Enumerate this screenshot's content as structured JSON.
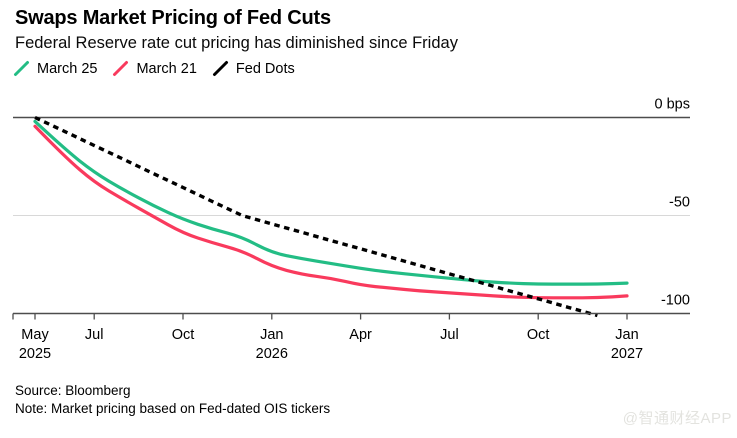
{
  "header": {
    "title": "Swaps Market Pricing of Fed Cuts",
    "subtitle": "Federal Reserve rate cut pricing has diminished since Friday"
  },
  "footer": {
    "source": "Source: Bloomberg",
    "note": "Note: Market pricing based on Fed-dated OIS tickers"
  },
  "watermark": "@智通财经APP",
  "chart_data": {
    "type": "line",
    "y_unit": "bps",
    "x_range": [
      "May 2025",
      "Jan 2027"
    ],
    "ylim": [
      -105,
      0
    ],
    "grid": "horizontal",
    "legend_position": "top-left",
    "colors": {
      "march25": "#23bd85",
      "march21": "#f93a5d",
      "fed_dots": "#000000",
      "axis": "#4d4d4d",
      "minor_grid": "#d8d8d8"
    },
    "series": [
      {
        "name": "March 25",
        "color": "#23bd85",
        "style": "solid",
        "start_month": 0,
        "values": [
          -2,
          -16,
          -28,
          -37,
          -45,
          -52,
          -57,
          -61,
          -69,
          -72,
          -74.5,
          -77,
          -79,
          -80.5,
          -82,
          -83.5,
          -84.5,
          -85,
          -85,
          -85,
          -84.5
        ]
      },
      {
        "name": "March 21",
        "color": "#f93a5d",
        "style": "solid",
        "start_month": 0,
        "values": [
          -4.5,
          -20,
          -33,
          -42,
          -50.5,
          -59,
          -64,
          -68,
          -76,
          -80,
          -82,
          -85.5,
          -87,
          -88.5,
          -89.5,
          -90.5,
          -91.5,
          -92,
          -92,
          -92,
          -91
        ]
      },
      {
        "name": "Fed Dots",
        "color": "#000000",
        "style": "dashed",
        "start_month": 0,
        "values": [
          0,
          -7.1,
          -14.3,
          -21.4,
          -28.6,
          -35.7,
          -42.9,
          -50,
          -54.3,
          -58.5,
          -62.8,
          -67,
          -71.3,
          -75.5,
          -79.8,
          -84,
          -88.3,
          -92.5,
          -96.8,
          -101
        ]
      }
    ],
    "x_ticks": [
      {
        "label": "May",
        "sublabel": "2025",
        "month": 0
      },
      {
        "label": "Jul",
        "sublabel": "",
        "month": 2
      },
      {
        "label": "Oct",
        "sublabel": "",
        "month": 5
      },
      {
        "label": "Jan",
        "sublabel": "2026",
        "month": 8
      },
      {
        "label": "Apr",
        "sublabel": "",
        "month": 11
      },
      {
        "label": "Jul",
        "sublabel": "",
        "month": 14
      },
      {
        "label": "Oct",
        "sublabel": "",
        "month": 17
      },
      {
        "label": "Jan",
        "sublabel": "2027",
        "month": 20
      }
    ],
    "y_ticks": [
      {
        "label": "0 bps",
        "value": 0
      },
      {
        "label": "-50",
        "value": -50
      },
      {
        "label": "-100",
        "value": -100
      }
    ]
  }
}
